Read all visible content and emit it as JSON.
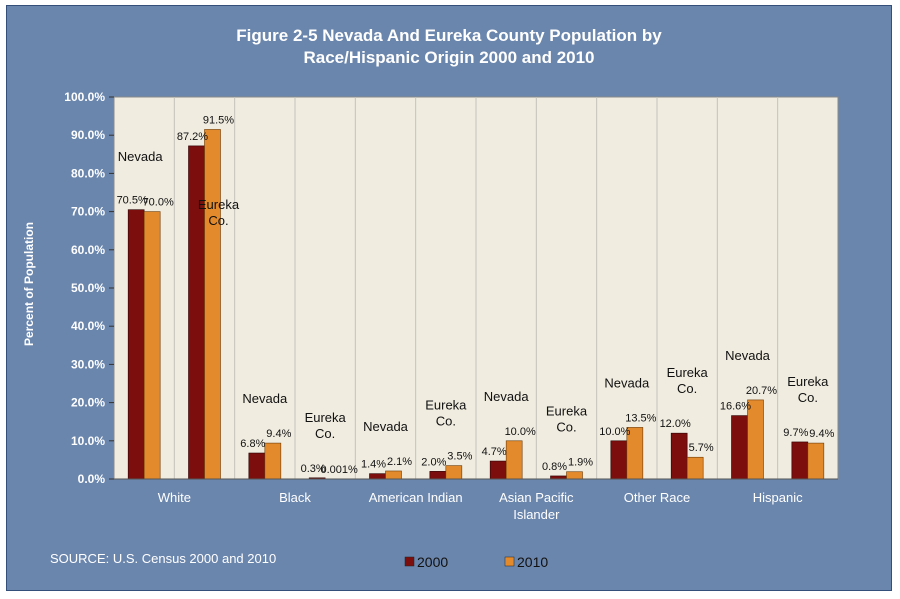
{
  "title_lines": [
    "Figure 2-5 Nevada And Eureka County Population by",
    "Race/Hispanic Origin 2000 and 2010"
  ],
  "source": "SOURCE: U.S. Census 2000 and 2010",
  "colors": {
    "frame": "#6b86ad",
    "plot": "#f0ece0",
    "series_2000": "#7c0e0e",
    "series_2010": "#e38a2d",
    "text": "#ffffff",
    "label": "#111111"
  },
  "chart_data": {
    "type": "bar",
    "ylabel": "Percent of Population",
    "ylim": [
      0,
      100
    ],
    "yticks": [
      "0.0%",
      "10.0%",
      "20.0%",
      "30.0%",
      "40.0%",
      "50.0%",
      "60.0%",
      "70.0%",
      "80.0%",
      "90.0%",
      "100.0%"
    ],
    "grid": "vertical group separators",
    "legend_position": "bottom",
    "groups": [
      {
        "label": [
          "White"
        ],
        "areas": [
          {
            "name": "Nevada",
            "values": [
              70.5,
              70.0
            ],
            "labels": [
              "70.5%",
              "70.0%"
            ]
          },
          {
            "name": "Eureka Co.",
            "values": [
              87.2,
              91.5
            ],
            "labels": [
              "87.2%",
              "91.5%"
            ]
          }
        ]
      },
      {
        "label": [
          "Black"
        ],
        "areas": [
          {
            "name": "Nevada",
            "values": [
              6.8,
              9.4
            ],
            "labels": [
              "6.8%",
              "9.4%"
            ]
          },
          {
            "name": "Eureka Co.",
            "values": [
              0.3,
              0.001
            ],
            "labels": [
              "0.3%",
              "0.001%"
            ]
          }
        ]
      },
      {
        "label": [
          "American Indian"
        ],
        "areas": [
          {
            "name": "Nevada",
            "values": [
              1.4,
              2.1
            ],
            "labels": [
              "1.4%",
              "2.1%"
            ]
          },
          {
            "name": "Eureka Co.",
            "values": [
              2.0,
              3.5
            ],
            "labels": [
              "2.0%",
              "3.5%"
            ]
          }
        ]
      },
      {
        "label": [
          "Asian Pacific",
          "Islander"
        ],
        "areas": [
          {
            "name": "Nevada",
            "values": [
              4.7,
              10.0
            ],
            "labels": [
              "4.7%",
              "10.0%"
            ]
          },
          {
            "name": "Eureka Co.",
            "values": [
              0.8,
              1.9
            ],
            "labels": [
              "0.8%",
              "1.9%"
            ]
          }
        ]
      },
      {
        "label": [
          "Other Race"
        ],
        "areas": [
          {
            "name": "Nevada",
            "values": [
              10.0,
              13.5
            ],
            "labels": [
              "10.0%",
              "13.5%"
            ]
          },
          {
            "name": "Eureka Co.",
            "values": [
              12.0,
              5.7
            ],
            "labels": [
              "12.0%",
              "5.7%"
            ]
          }
        ]
      },
      {
        "label": [
          "Hispanic"
        ],
        "areas": [
          {
            "name": "Nevada",
            "values": [
              16.6,
              20.7
            ],
            "labels": [
              "16.6%",
              "20.7%"
            ]
          },
          {
            "name": "Eureka Co.",
            "values": [
              9.7,
              9.4
            ],
            "labels": [
              "9.7%",
              "9.4%"
            ]
          }
        ]
      }
    ],
    "series": [
      {
        "name": "2000"
      },
      {
        "name": "2010"
      }
    ]
  }
}
